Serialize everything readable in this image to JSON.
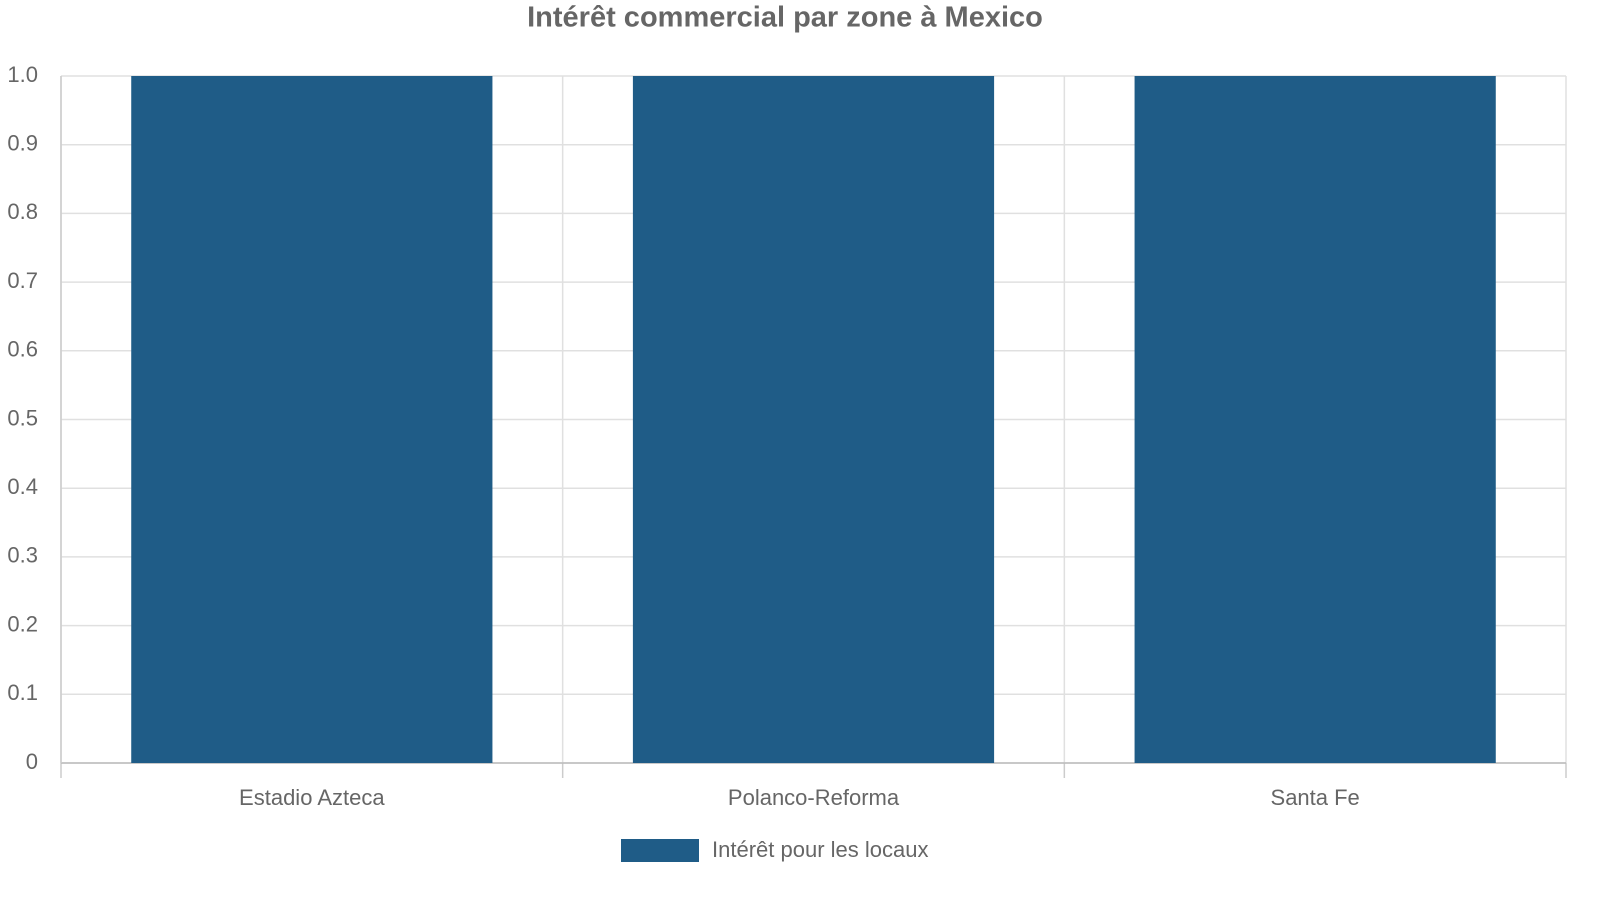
{
  "chart_data": {
    "type": "bar",
    "title": "Intérêt commercial par zone à Mexico",
    "categories": [
      "Estadio Azteca",
      "Polanco-Reforma",
      "Santa Fe"
    ],
    "series": [
      {
        "name": "Intérêt pour les locaux",
        "color": "#1f5c87",
        "values": [
          1,
          1,
          1
        ]
      }
    ],
    "ylim": [
      0,
      1
    ],
    "yticks": [
      0,
      0.1,
      0.2,
      0.3,
      0.4,
      0.5,
      0.6,
      0.7,
      0.8,
      0.9,
      {
        "value": 1,
        "label": "1.0"
      }
    ],
    "grid": true,
    "legend": "bottom"
  }
}
